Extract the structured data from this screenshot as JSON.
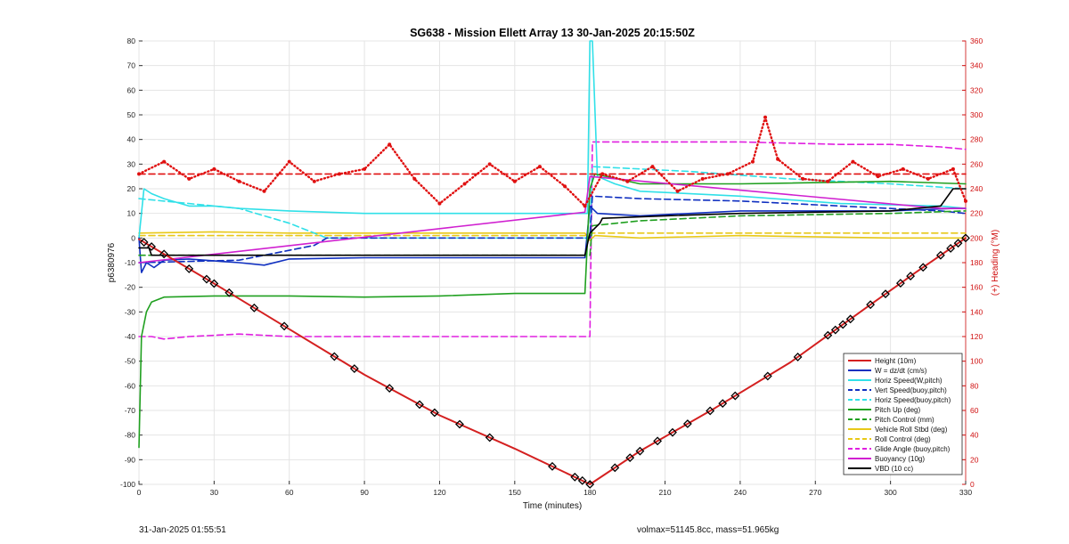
{
  "chart_data": {
    "type": "line",
    "title": "SG638 - Mission Ellett Array 13 30-Jan-2025 20:15:50Z",
    "xlabel": "Time (minutes)",
    "ylabel": "p6380976",
    "ylabel_right": "(+) Heading (°M)",
    "xlim": [
      0,
      330
    ],
    "ylim": [
      -100,
      80
    ],
    "ylim_right": [
      0,
      360
    ],
    "x_ticks": [
      0,
      30,
      60,
      90,
      120,
      150,
      180,
      210,
      240,
      270,
      300,
      330
    ],
    "y_ticks": [
      80,
      70,
      60,
      50,
      40,
      30,
      20,
      10,
      0,
      -10,
      -20,
      -30,
      -40,
      -50,
      -60,
      -70,
      -80,
      -90,
      -100
    ],
    "y_ticks_right": [
      360,
      340,
      320,
      300,
      280,
      260,
      240,
      220,
      200,
      180,
      160,
      140,
      120,
      100,
      80,
      60,
      40,
      20,
      0
    ],
    "grid": true,
    "legend_position": "bottom-right",
    "series": [
      {
        "name": "Height (10m)",
        "color": "#d42020",
        "style": "solid",
        "x": [
          0,
          30,
          60,
          90,
          120,
          150,
          176,
          180,
          200,
          230,
          260,
          290,
          310,
          330
        ],
        "y": [
          -0.5,
          -18.5,
          -37,
          -55.5,
          -72,
          -85.5,
          -98,
          -100,
          -86.5,
          -69,
          -50.5,
          -28.5,
          -14,
          0
        ]
      },
      {
        "name": "W = dz/dt (cm/s)",
        "color": "#1030c0",
        "style": "solid",
        "x": [
          0,
          1,
          3,
          6,
          10,
          20,
          40,
          50,
          60,
          90,
          120,
          150,
          178,
          180,
          183,
          200,
          240,
          300,
          325,
          330
        ],
        "y": [
          0,
          -14,
          -10,
          -12,
          -9,
          -8.5,
          -10,
          -11,
          -8.5,
          -8,
          -8,
          -8,
          -8,
          13,
          10,
          9,
          11,
          11,
          12,
          12
        ]
      },
      {
        "name": "Horiz Speed(W,pitch)",
        "color": "#30e0e8",
        "style": "solid",
        "x": [
          0,
          2,
          5,
          10,
          20,
          30,
          40,
          60,
          90,
          120,
          150,
          175,
          179,
          180,
          181,
          183,
          190,
          200,
          240,
          280,
          320,
          330
        ],
        "y": [
          0,
          20,
          18,
          16,
          13,
          13,
          12,
          11,
          10,
          10,
          10,
          10,
          10,
          80,
          80,
          25,
          22,
          19,
          17,
          14,
          13,
          12
        ]
      },
      {
        "name": "Vert Speed(buoy,pitch)",
        "color": "#1030c0",
        "style": "dashed",
        "x": [
          0,
          40,
          70,
          75,
          180,
          181,
          200,
          240,
          280,
          320,
          330
        ],
        "y": [
          -10,
          -9,
          -3,
          0,
          0,
          17,
          16,
          15,
          13,
          11,
          10
        ]
      },
      {
        "name": "Horiz Speed(buoy,pitch)",
        "color": "#30e0e8",
        "style": "dashed",
        "x": [
          0,
          40,
          60,
          70,
          75,
          180,
          181,
          220,
          260,
          300,
          330
        ],
        "y": [
          16,
          12,
          6,
          2,
          0,
          0,
          29,
          27,
          24,
          22,
          20
        ]
      },
      {
        "name": "Pitch Up (deg)",
        "color": "#20a020",
        "style": "solid",
        "x": [
          0,
          1,
          3,
          5,
          10,
          30,
          60,
          90,
          120,
          150,
          178,
          180,
          182,
          200,
          240,
          300,
          330
        ],
        "y": [
          -85,
          -40,
          -30,
          -26,
          -24,
          -23.5,
          -23.5,
          -24,
          -23.5,
          -22.5,
          -22.5,
          20,
          26,
          22,
          22,
          23,
          22
        ]
      },
      {
        "name": "Pitch Control (mm)",
        "color": "#20a020",
        "style": "dashed",
        "x": [
          0,
          180,
          181,
          200,
          240,
          300,
          330
        ],
        "y": [
          -7,
          -7,
          5,
          7,
          9,
          10,
          11
        ]
      },
      {
        "name": "Vehicle Roll Stbd (deg)",
        "color": "#e8c818",
        "style": "solid",
        "x": [
          0,
          30,
          60,
          90,
          120,
          150,
          178,
          180,
          182,
          200,
          240,
          300,
          330
        ],
        "y": [
          2,
          2.5,
          2,
          2,
          2,
          2,
          2,
          -1,
          1,
          0,
          1,
          0,
          0
        ]
      },
      {
        "name": "Roll Control (deg)",
        "color": "#e8c818",
        "style": "dashed",
        "x": [
          0,
          180,
          181,
          330
        ],
        "y": [
          1,
          1,
          2,
          2
        ]
      },
      {
        "name": "Glide Angle (buoy,pitch)",
        "color": "#e020e0",
        "style": "dashed",
        "x": [
          0,
          5,
          10,
          20,
          40,
          60,
          90,
          120,
          150,
          178,
          180,
          181,
          200,
          240,
          280,
          300,
          320,
          330
        ],
        "y": [
          -40,
          -40,
          -41,
          -40,
          -39,
          -40,
          -40,
          -40,
          -40,
          -40,
          -40,
          39,
          39,
          39,
          38,
          38,
          37,
          36
        ]
      },
      {
        "name": "Buoyancy (10g)",
        "color": "#d020d0",
        "style": "solid",
        "x": [
          0,
          178,
          180,
          320,
          330
        ],
        "y": [
          -10,
          10.5,
          25,
          12,
          12
        ]
      },
      {
        "name": "VBD (10 cc)",
        "color": "#000000",
        "style": "solid",
        "x": [
          0,
          4,
          5,
          178,
          180,
          184,
          185,
          210,
          240,
          300,
          320,
          325,
          330
        ],
        "y": [
          -4,
          -4,
          -7,
          -7,
          2,
          6,
          8,
          9,
          10,
          11,
          13,
          20,
          20
        ]
      },
      {
        "name": "",
        "axis": "right",
        "color": "#e01010",
        "style": "dotted",
        "marker": "dot",
        "x": [
          0,
          10,
          20,
          30,
          40,
          50,
          60,
          70,
          80,
          90,
          100,
          110,
          120,
          130,
          140,
          150,
          160,
          170,
          178,
          185,
          195,
          205,
          215,
          225,
          235,
          245,
          250,
          255,
          265,
          275,
          285,
          295,
          305,
          315,
          325,
          330
        ],
        "y": [
          252,
          262,
          248,
          256,
          246,
          238,
          262,
          246,
          252,
          256,
          276,
          248,
          228,
          244,
          260,
          246,
          258,
          242,
          226,
          252,
          246,
          258,
          238,
          248,
          252,
          262,
          298,
          264,
          248,
          246,
          262,
          250,
          256,
          248,
          256,
          230
        ]
      },
      {
        "name": "",
        "axis": "right",
        "color": "#e01010",
        "style": "dashed",
        "x": [
          0,
          330
        ],
        "y": [
          252,
          252
        ]
      }
    ],
    "markers": {
      "series": "Height (10m)",
      "shape": "diamond",
      "x": [
        2,
        5,
        10,
        20,
        27,
        30,
        36,
        46,
        58,
        78,
        86,
        100,
        112,
        118,
        128,
        140,
        165,
        174,
        177,
        180,
        190,
        196,
        200,
        207,
        213,
        219,
        228,
        233,
        238,
        251,
        263,
        275,
        278,
        281,
        284,
        292,
        298,
        304,
        308,
        313,
        320,
        324,
        327,
        330
      ]
    }
  },
  "footer": {
    "left": "31-Jan-2025 01:55:51",
    "right": "volmax=51145.8cc, mass=51.965kg"
  }
}
